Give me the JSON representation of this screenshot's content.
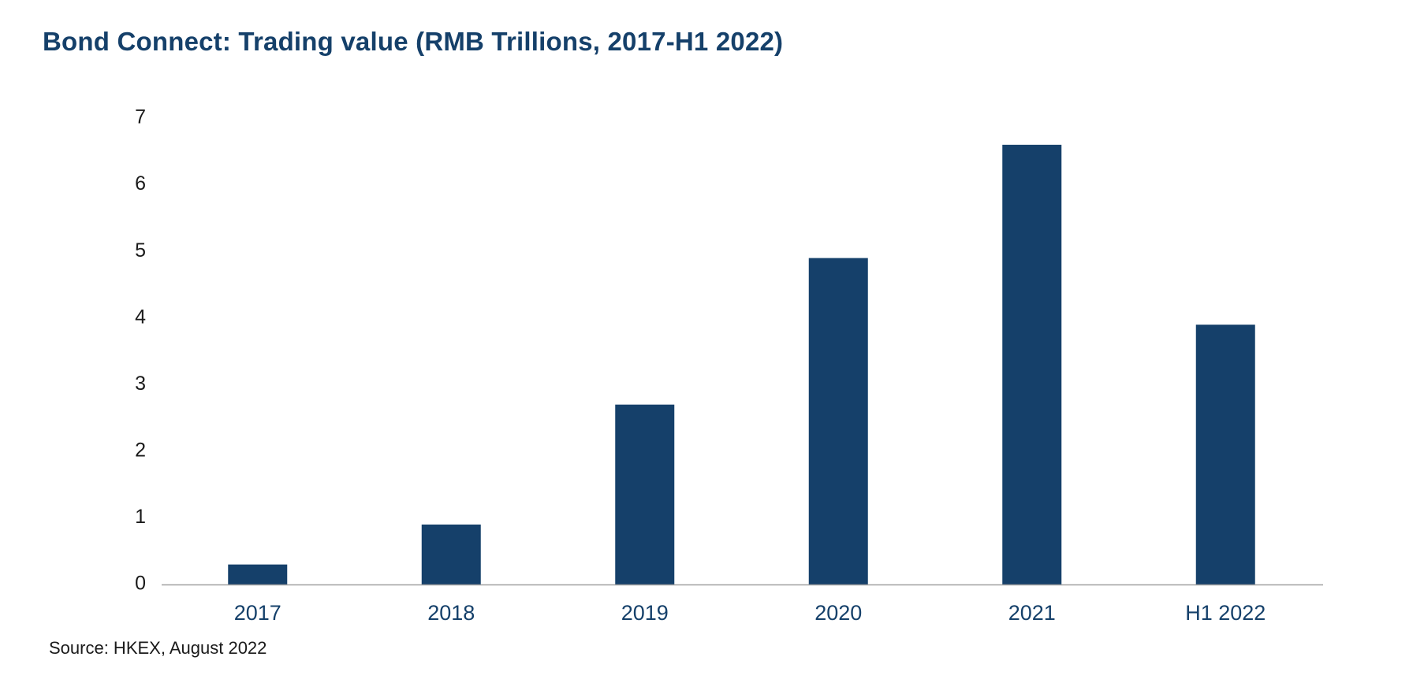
{
  "chart_data": {
    "type": "bar",
    "title": "Bond Connect: Trading value (RMB Trillions, 2017-H1 2022)",
    "categories": [
      "2017",
      "2018",
      "2019",
      "2020",
      "2021",
      "H1 2022"
    ],
    "values": [
      0.3,
      0.9,
      2.7,
      4.9,
      6.6,
      3.9
    ],
    "xlabel": "",
    "ylabel": "",
    "ylim": [
      0,
      7
    ],
    "yticks": [
      "0",
      "1",
      "2",
      "3",
      "4",
      "5",
      "6",
      "7"
    ],
    "grid": false,
    "legend": "none",
    "bar_color": "#15406a",
    "axis_color": "#a0a0a0"
  },
  "source": "Source: HKEX, August 2022"
}
